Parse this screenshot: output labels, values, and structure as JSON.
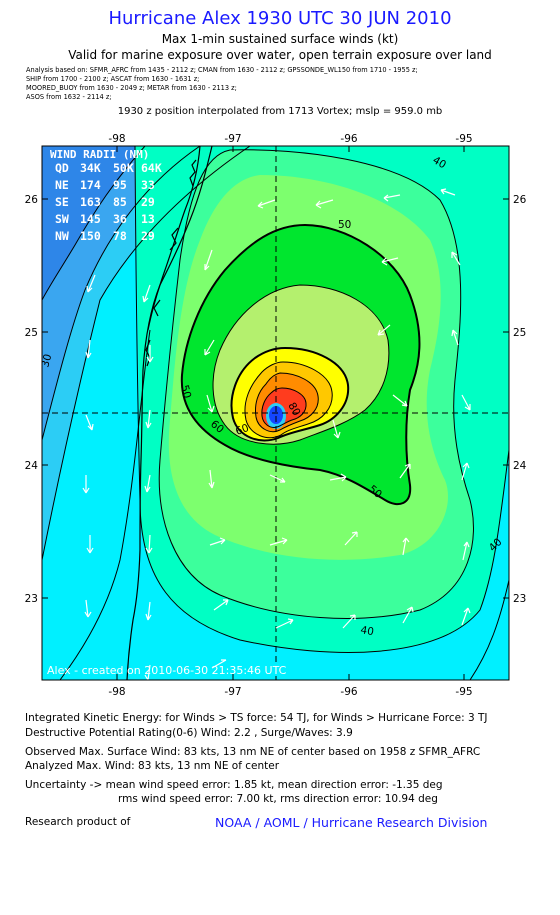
{
  "header": {
    "title": "Hurricane Alex 1930 UTC 30 JUN 2010",
    "subtitle1": "Max 1-min sustained surface winds (kt)",
    "subtitle2": "Valid for marine exposure over water, open terrain exposure over land",
    "analysis_lines": [
      "Analysis based on:  SFMR_AFRC from 1435 - 2112 z;   CMAN from 1630 - 2112 z;   GPSSONDE_WL150 from 1710 - 1955 z;",
      "SHIP from 1700 - 2100 z;   ASCAT from 1630 - 1631 z;",
      "MOORED_BUOY from 1630 - 2049 z;   METAR from 1630 - 2113 z;",
      "ASOS from 1632 - 2114 z;"
    ],
    "interpolation": "1930 z position interpolated from 1713 Vortex; mslp = 959.0 mb"
  },
  "map": {
    "lon_ticks": [
      "-98",
      "-97",
      "-96",
      "-95"
    ],
    "lat_ticks": [
      "26",
      "25",
      "24",
      "23"
    ],
    "lon_range": [
      -98.55,
      -94.55
    ],
    "lat_range": [
      22.35,
      26.3
    ],
    "center": {
      "lon": -96.6,
      "lat": 24.4
    },
    "contour_labels": [
      "30",
      "40",
      "40",
      "40",
      "50",
      "50",
      "50",
      "60",
      "60",
      "80"
    ],
    "watermark": "Alex - created on 2010-06-30 21:35:46 UTC",
    "wind_radii": {
      "title": "WIND RADII (NM)",
      "header": [
        "QD",
        "34K",
        "50K",
        "64K"
      ],
      "rows": [
        [
          "NE",
          "174",
          "95",
          "33"
        ],
        [
          "SE",
          "163",
          "85",
          "29"
        ],
        [
          "SW",
          "145",
          "36",
          "13"
        ],
        [
          "NW",
          "150",
          "78",
          "29"
        ]
      ]
    },
    "colors": {
      "deep_blue": "#2e86e8",
      "blue2": "#3aa6f0",
      "cyan1": "#2ccdf5",
      "cyan": "#00f0ff",
      "aqua_green": "#00ffc4",
      "mint": "#3cff9c",
      "light_green": "#7dff6e",
      "green": "#00e62e",
      "yellow_green": "#b4f06e",
      "yellow": "#ffff00",
      "gold": "#ffc800",
      "orange": "#ff8c00",
      "red": "#ff3c1e",
      "eye_blue": "#1446ff"
    }
  },
  "footer": {
    "ike": "Integrated Kinetic Energy:  for Winds > TS force: 54 TJ,  for Winds > Hurricane Force: 3 TJ",
    "dpr": "Destructive Potential Rating(0-6)   Wind: 2.2 , Surge/Waves: 3.9",
    "observed": "Observed Max. Surface Wind: 83 kts, 13 nm NE of center based on 1958 z SFMR_AFRC",
    "analyzed": "Analyzed Max. Wind: 83 kts, 13 nm NE of center",
    "uncert1": "Uncertainty -> mean wind speed error: 1.85 kt,   mean direction error:  -1.35 deg",
    "uncert2": "rms wind speed error: 7.00 kt,   rms direction error: 10.94 deg",
    "research": "Research product of",
    "org": "NOAA / AOML / Hurricane Research Division"
  }
}
